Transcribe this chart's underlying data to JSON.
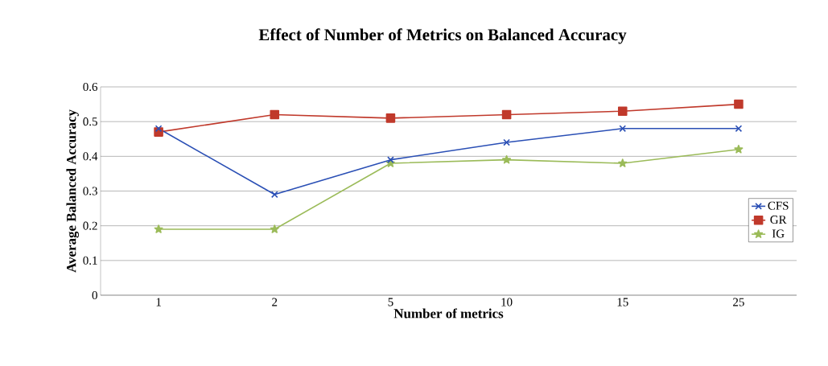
{
  "chart_data": {
    "type": "line",
    "title": "Effect of Number of Metrics on Balanced Accuracy",
    "xlabel": "Number of metrics",
    "ylabel": "Average Balanced Accuracy",
    "categories": [
      "1",
      "2",
      "5",
      "10",
      "15",
      "25"
    ],
    "series": [
      {
        "name": "CFS",
        "color": "#2a4fb5",
        "marker": "cross",
        "values": [
          0.48,
          0.29,
          0.39,
          0.44,
          0.48,
          0.48
        ]
      },
      {
        "name": "GR",
        "color": "#c0392b",
        "marker": "square",
        "values": [
          0.47,
          0.52,
          0.51,
          0.52,
          0.53,
          0.55
        ]
      },
      {
        "name": "IG",
        "color": "#9bbb59",
        "marker": "star",
        "values": [
          0.19,
          0.19,
          0.38,
          0.39,
          0.38,
          0.42
        ]
      }
    ],
    "ylim": [
      0,
      0.6
    ],
    "yticks": [
      0,
      0.1,
      0.2,
      0.3,
      0.4,
      0.5,
      0.6
    ],
    "grid": "y",
    "legend": "right",
    "line_style": "solid"
  }
}
